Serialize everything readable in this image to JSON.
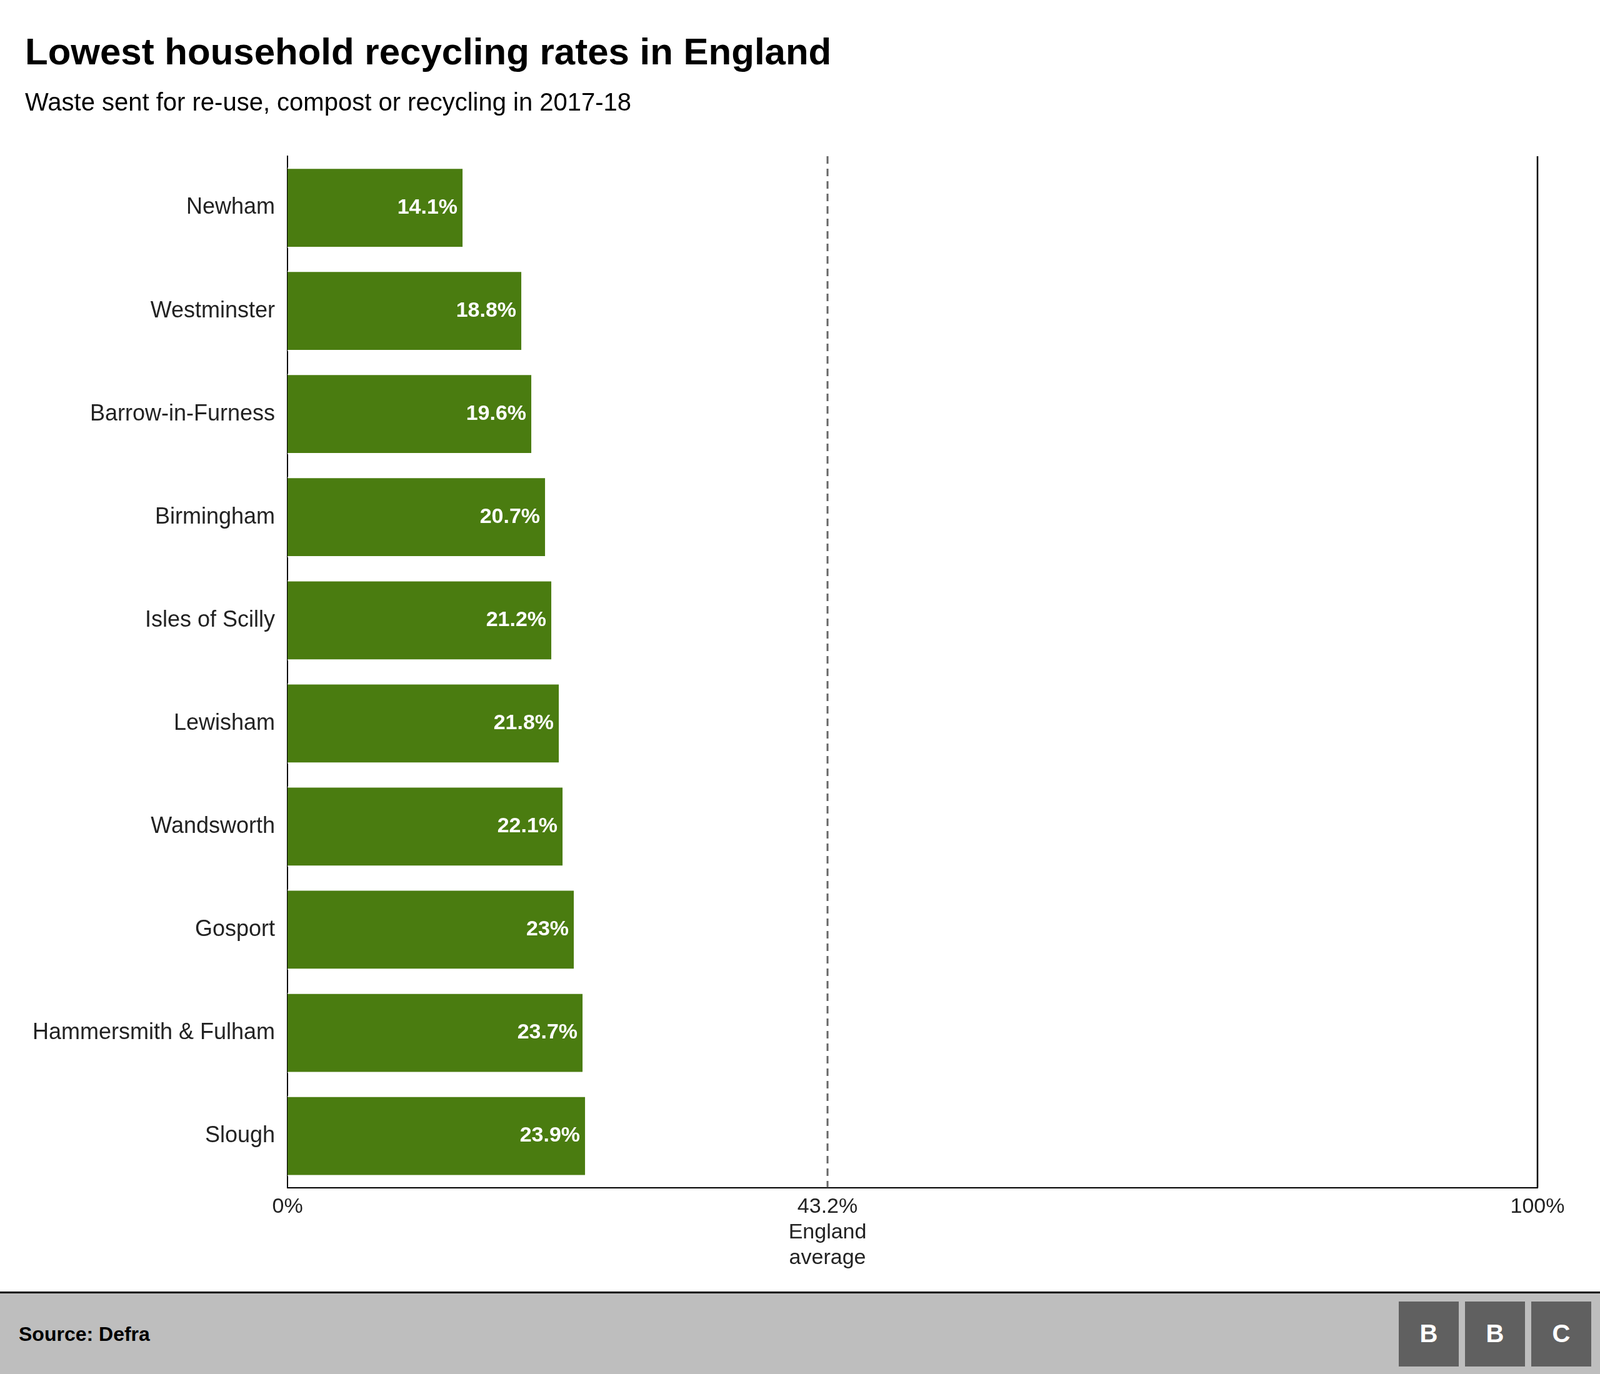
{
  "chart_data": {
    "type": "bar",
    "orientation": "horizontal",
    "title": "Lowest household recycling rates in England",
    "subtitle": "Waste sent for re-use, compost or recycling in 2017-18",
    "categories": [
      "Newham",
      "Westminster",
      "Barrow-in-Furness",
      "Birmingham",
      "Isles of Scilly",
      "Lewisham",
      "Wandsworth",
      "Gosport",
      "Hammersmith & Fulham",
      "Slough"
    ],
    "values": [
      14.1,
      18.8,
      19.6,
      20.7,
      21.2,
      21.8,
      22.1,
      23.0,
      23.7,
      23.9
    ],
    "value_labels": [
      "14.1%",
      "18.8%",
      "19.6%",
      "20.7%",
      "21.2%",
      "21.8%",
      "22.1%",
      "23%",
      "23.7%",
      "23.9%"
    ],
    "data_labels": true,
    "color": "#4a7c10",
    "xlim": [
      0,
      100
    ],
    "xticks": [
      {
        "value": 0,
        "label": "0%"
      },
      {
        "value": 43.2,
        "label": "43.2%\nEngland\naverage"
      },
      {
        "value": 100,
        "label": "100%"
      }
    ],
    "reference_line": 43.2,
    "grid": false,
    "source": "Source: Defra",
    "logo": "BBC"
  }
}
